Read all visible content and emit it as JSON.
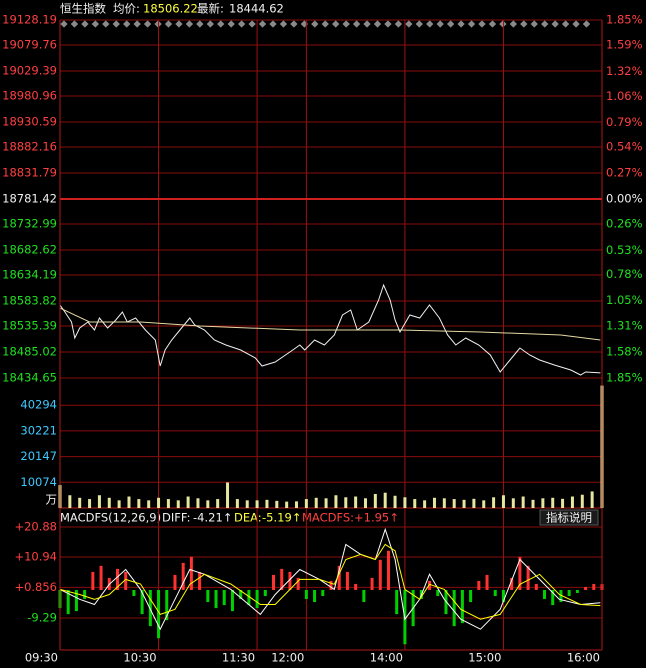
{
  "header": {
    "name": "恒生指数",
    "avg_label": "均价:",
    "avg_value": "18506.22",
    "last_label": "最新:",
    "last_value": "18444.62"
  },
  "macd_header": {
    "title": "MACDFS(12,26,9)",
    "diff_label": "DIFF:",
    "diff_value": "-4.21↑",
    "dea_label": "DEA:",
    "dea_value": "-5.19↑",
    "macd_label": "MACDFS:",
    "macd_value": "+1.95↑",
    "button": "指标说明"
  },
  "chart_data": [
    {
      "type": "line",
      "xlim": [
        0,
        330
      ],
      "ylim": [
        18434.65,
        19128.19
      ],
      "yticks": [
        19128.19,
        19079.76,
        19029.39,
        18980.96,
        18930.59,
        18882.16,
        18831.79,
        18781.42,
        18732.99,
        18682.62,
        18634.19,
        18583.82,
        18535.39,
        18485.02,
        18434.65
      ],
      "y2lim": [
        -1.85,
        1.85
      ],
      "y2ticks": [
        {
          "value": 1.85,
          "label": "1.85%"
        },
        {
          "value": 1.59,
          "label": "1.59%"
        },
        {
          "value": 1.32,
          "label": "1.32%"
        },
        {
          "value": 1.06,
          "label": "1.06%"
        },
        {
          "value": 0.79,
          "label": "0.79%"
        },
        {
          "value": 0.54,
          "label": "0.54%"
        },
        {
          "value": 0.27,
          "label": "0.27%"
        },
        {
          "value": 0,
          "label": "0.00%"
        },
        {
          "value": -0.26,
          "label": "0.26%"
        },
        {
          "value": -0.53,
          "label": "0.53%"
        },
        {
          "value": -0.78,
          "label": "0.78%"
        },
        {
          "value": -1.05,
          "label": "1.05%"
        },
        {
          "value": -1.31,
          "label": "1.31%"
        },
        {
          "value": -1.58,
          "label": "1.58%"
        },
        {
          "value": -1.85,
          "label": "1.85%"
        }
      ],
      "grid": true,
      "series": [
        {
          "color": "#f0f0f0",
          "x": [
            0,
            3,
            7,
            9,
            12,
            17,
            21,
            24,
            29,
            34,
            38,
            41,
            46,
            52,
            58,
            61,
            64,
            68,
            73,
            79,
            82,
            88,
            94,
            101,
            110,
            119,
            123,
            131,
            140,
            146,
            149,
            155,
            161,
            167,
            172,
            177,
            181,
            188,
            194,
            197,
            201,
            204,
            207,
            213,
            219,
            225,
            231,
            236,
            241,
            247,
            255,
            262,
            268,
            274,
            280,
            286,
            292,
            301,
            311,
            317,
            320,
            329
          ],
          "values": [
            18576.1,
            18562.5,
            18543.1,
            18512.1,
            18531.5,
            18543.1,
            18527.6,
            18550.9,
            18531.5,
            18547.0,
            18562.5,
            18543.1,
            18550.9,
            18527.6,
            18508.3,
            18457.9,
            18488.9,
            18508.3,
            18527.6,
            18550.9,
            18537.3,
            18527.6,
            18508.3,
            18498.6,
            18488.9,
            18473.4,
            18457.9,
            18465.6,
            18485.0,
            18498.6,
            18488.9,
            18508.3,
            18498.6,
            18518.0,
            18556.7,
            18566.4,
            18527.6,
            18543.1,
            18585.8,
            18614.8,
            18585.8,
            18547.0,
            18523.8,
            18556.7,
            18550.9,
            18576.1,
            18550.9,
            18518.0,
            18498.6,
            18512.1,
            18498.6,
            18479.2,
            18446.3,
            18469.5,
            18492.8,
            18479.2,
            18469.5,
            18459.8,
            18450.1,
            18440.5,
            18446.3,
            18444.62
          ]
        },
        {
          "color": "#e6d9a6",
          "x": [
            0,
            18,
            49,
            85,
            146,
            207,
            256,
            305,
            329
          ],
          "values": [
            18570.0,
            18543.1,
            18543.1,
            18535.4,
            18527.6,
            18527.6,
            18523.8,
            18518.0,
            18508.3
          ]
        }
      ]
    },
    {
      "type": "bar",
      "xlim": [
        0,
        330
      ],
      "ylim": [
        0,
        50960
      ],
      "yticks": [
        40294,
        30221,
        20147,
        10074
      ],
      "y_unit": "万",
      "color": "#e6e6a0",
      "x": [
        0,
        6,
        12,
        18,
        24,
        30,
        36,
        42,
        48,
        54,
        60,
        66,
        72,
        78,
        84,
        90,
        96,
        102,
        108,
        114,
        120,
        126,
        132,
        138,
        144,
        150,
        156,
        162,
        168,
        174,
        180,
        186,
        192,
        198,
        204,
        210,
        216,
        222,
        228,
        234,
        240,
        246,
        252,
        258,
        264,
        270,
        276,
        282,
        288,
        294,
        300,
        306,
        312,
        318,
        324,
        330
      ],
      "values": [
        9000,
        5000,
        4000,
        3500,
        5000,
        4000,
        3000,
        4500,
        3500,
        3000,
        4000,
        3500,
        3000,
        4500,
        3800,
        3000,
        3500,
        10000,
        3500,
        3000,
        3000,
        3200,
        2800,
        2500,
        2600,
        3500,
        4000,
        3800,
        5000,
        4200,
        4500,
        3800,
        5500,
        6000,
        4800,
        4200,
        3500,
        3000,
        4000,
        3800,
        3500,
        3200,
        3600,
        3000,
        4200,
        5000,
        3800,
        4500,
        3200,
        3800,
        4000,
        3600,
        4500,
        5200,
        6500,
        48000
      ]
    },
    {
      "type": "combo",
      "xlim": [
        0,
        330
      ],
      "ylim": [
        -19.9,
        24.2
      ],
      "yticks": [
        {
          "value": 20.88,
          "label": "+20.88"
        },
        {
          "value": 10.94,
          "label": "+10.94"
        },
        {
          "value": 0.856,
          "label": "+0.856"
        },
        -9.29
      ],
      "xticks": [
        {
          "value": 0,
          "label": "09:30"
        },
        {
          "value": 60,
          "label": "10:30"
        },
        {
          "value": 120,
          "label": "11:30"
        },
        {
          "value": 150,
          "label": "12:00"
        },
        {
          "value": 210,
          "label": "14:00"
        },
        {
          "value": 270,
          "label": "15:00"
        },
        {
          "value": 330,
          "label": "16:00"
        }
      ],
      "series": [
        {
          "type": "bar",
          "up_color": "#ff3232",
          "down_color": "#00d000",
          "x": [
            0,
            5,
            10,
            15,
            20,
            25,
            30,
            35,
            40,
            45,
            50,
            55,
            60,
            65,
            70,
            75,
            80,
            85,
            90,
            95,
            100,
            105,
            110,
            115,
            120,
            125,
            130,
            135,
            140,
            145,
            150,
            155,
            160,
            165,
            170,
            175,
            180,
            185,
            190,
            195,
            200,
            205,
            210,
            215,
            220,
            225,
            230,
            235,
            240,
            245,
            250,
            255,
            260,
            265,
            270,
            275,
            280,
            285,
            290,
            295,
            300,
            305,
            310,
            315,
            320,
            325,
            330
          ],
          "values": [
            -6,
            -8,
            -7,
            -3,
            6,
            8,
            4,
            7,
            6,
            -2,
            -8,
            -12,
            -16,
            -10,
            5,
            9,
            11,
            6,
            -4,
            -6,
            -5,
            -7,
            -3,
            -5,
            -6,
            -2,
            5,
            7,
            6,
            4,
            -3,
            -4,
            -2,
            3,
            8,
            6,
            2,
            -4,
            4,
            10,
            13,
            -8,
            -18,
            -12,
            -3,
            3,
            -2,
            -8,
            -12,
            -11,
            -4,
            3,
            5,
            -2,
            -4,
            4,
            11,
            8,
            2,
            -3,
            -5,
            -4,
            -2,
            -1,
            1,
            2,
            1.95
          ]
        },
        {
          "type": "line",
          "color": "#ffffff",
          "x": [
            0,
            12,
            21,
            30,
            40,
            49,
            61,
            70,
            79,
            88,
            104,
            122,
            131,
            146,
            158,
            167,
            174,
            183,
            192,
            198,
            204,
            210,
            219,
            225,
            234,
            244,
            256,
            268,
            280,
            292,
            304,
            317,
            329
          ],
          "values": [
            0.2,
            -3.1,
            -4.8,
            1.9,
            6.8,
            0.2,
            -13.0,
            -3.1,
            6.8,
            5.2,
            0.2,
            -8.1,
            -1.5,
            6.8,
            3.5,
            0.2,
            15.1,
            11.8,
            10.1,
            20.1,
            10.1,
            -9.7,
            -3.1,
            5.2,
            -3.1,
            -9.7,
            -13.0,
            -6.4,
            10.1,
            3.5,
            -3.1,
            -4.8,
            -4.21
          ]
        },
        {
          "type": "line",
          "color": "#ffff00",
          "x": [
            0,
            12,
            21,
            30,
            40,
            49,
            61,
            70,
            79,
            88,
            104,
            122,
            131,
            146,
            158,
            167,
            174,
            183,
            192,
            198,
            204,
            210,
            219,
            225,
            234,
            244,
            256,
            268,
            280,
            292,
            304,
            317,
            329
          ],
          "values": [
            0.2,
            -1.5,
            -3.1,
            -1.5,
            3.5,
            2.0,
            -8.1,
            -6.4,
            1.9,
            5.2,
            2.0,
            -4.8,
            -4.8,
            3.5,
            3.5,
            1.9,
            10.1,
            11.8,
            10.1,
            15.1,
            13.0,
            0.2,
            -3.1,
            1.9,
            0.2,
            -6.4,
            -9.7,
            -8.1,
            1.9,
            5.2,
            -1.5,
            -4.8,
            -5.19
          ]
        }
      ]
    }
  ]
}
